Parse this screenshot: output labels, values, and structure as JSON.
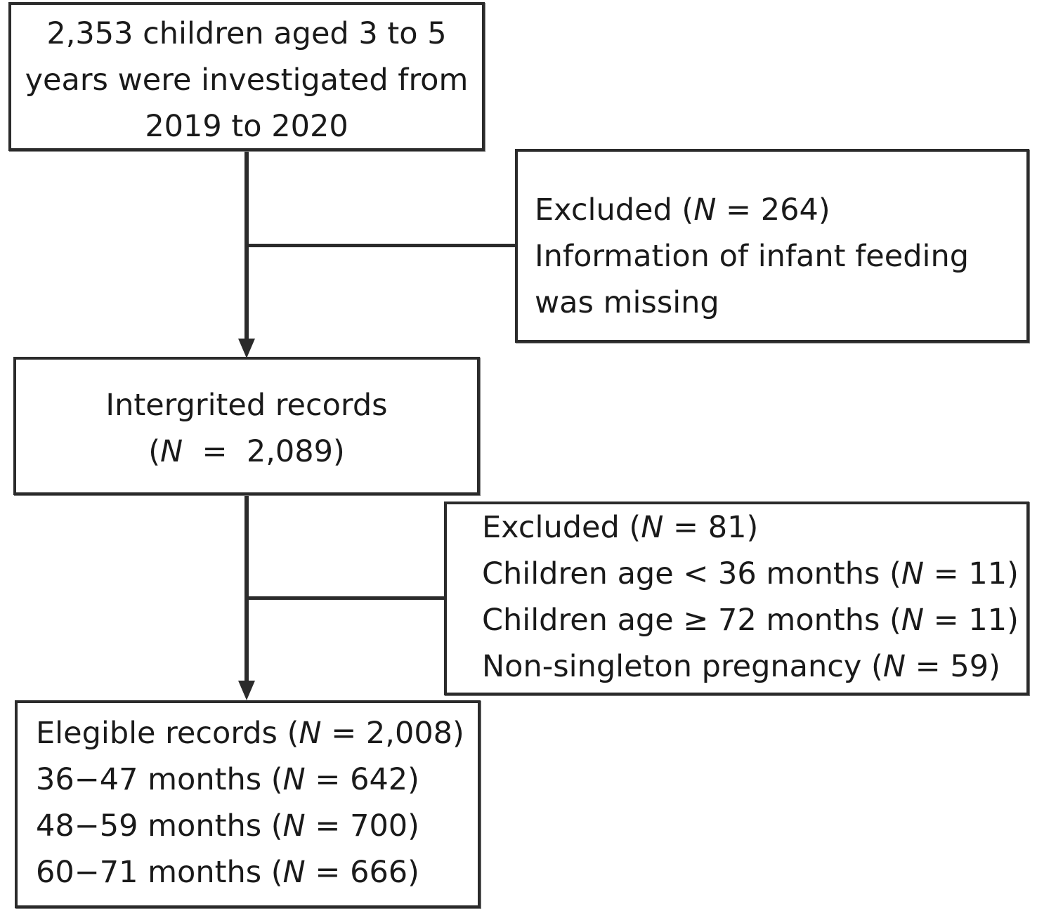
{
  "box_start": {
    "lines": [
      "2,353 children aged 3 to 5",
      "years were investigated from",
      "2019 to 2020"
    ]
  },
  "box_excluded_1": {
    "line1_pre": "Excluded (",
    "line1_n": "N",
    "line1_post": " = 264)",
    "line2": "Information of infant feeding",
    "line3": "was missing"
  },
  "box_integrated": {
    "line1": "Intergrited records",
    "line2_pre": "(",
    "line2_n": "N",
    "line2_post": "  =  2,089)"
  },
  "box_excluded_2": {
    "line1_pre": "Excluded (",
    "line1_n": "N",
    "line1_post": " = 81)",
    "line2_pre": "Children age < 36 months (",
    "line2_n": "N",
    "line2_post": " = 11)",
    "line3_pre": "Children age ≥ 72 months (",
    "line3_n": "N",
    "line3_post": " = 11)",
    "line4_pre": "Non-singleton pregnancy (",
    "line4_n": "N",
    "line4_post": " = 59)"
  },
  "box_eligible": {
    "line1_pre": "Elegible records (",
    "line1_n": "N",
    "line1_post": " = 2,008)",
    "line2_pre": "36−47 months (",
    "line2_n": "N",
    "line2_post": " = 642)",
    "line3_pre": "48−59 months (",
    "line3_n": "N",
    "line3_post": " = 700)",
    "line4_pre": "60−71 months (",
    "line4_n": "N",
    "line4_post": " = 666)"
  }
}
